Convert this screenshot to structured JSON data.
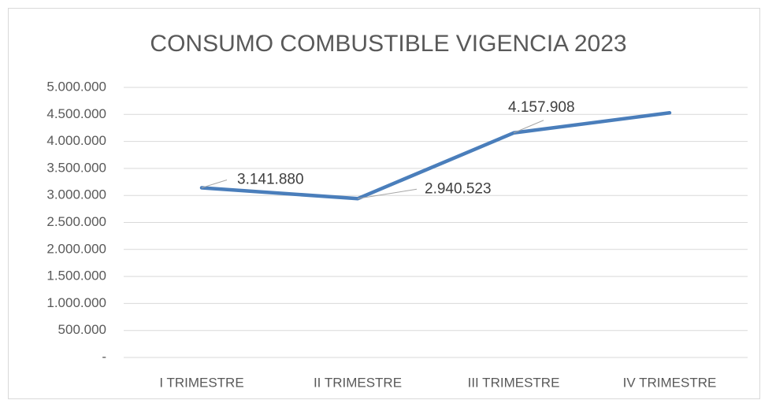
{
  "chart_data": {
    "type": "line",
    "title": "CONSUMO COMBUSTIBLE VIGENCIA 2023",
    "categories": [
      "I TRIMESTRE",
      "II TRIMESTRE",
      "III TRIMESTRE",
      "IV TRIMESTRE"
    ],
    "series": [
      {
        "name": "Consumo",
        "color": "#4a7ebb",
        "values": [
          3141880,
          2940523,
          4157908,
          4530000
        ],
        "value_labels": [
          "3.141.880",
          "2.940.523",
          "4.157.908",
          null
        ]
      }
    ],
    "ylim": [
      0,
      5000000
    ],
    "yticks": [
      {
        "value": 0,
        "label": "-"
      },
      {
        "value": 500000,
        "label": "500.000"
      },
      {
        "value": 1000000,
        "label": "1.000.000"
      },
      {
        "value": 1500000,
        "label": "1.500.000"
      },
      {
        "value": 2000000,
        "label": "2.000.000"
      },
      {
        "value": 2500000,
        "label": "2.500.000"
      },
      {
        "value": 3000000,
        "label": "3.000.000"
      },
      {
        "value": 3500000,
        "label": "3.500.000"
      },
      {
        "value": 4000000,
        "label": "4.000.000"
      },
      {
        "value": 4500000,
        "label": "4.500.000"
      },
      {
        "value": 5000000,
        "label": "5.000.000"
      }
    ],
    "grid": true
  }
}
